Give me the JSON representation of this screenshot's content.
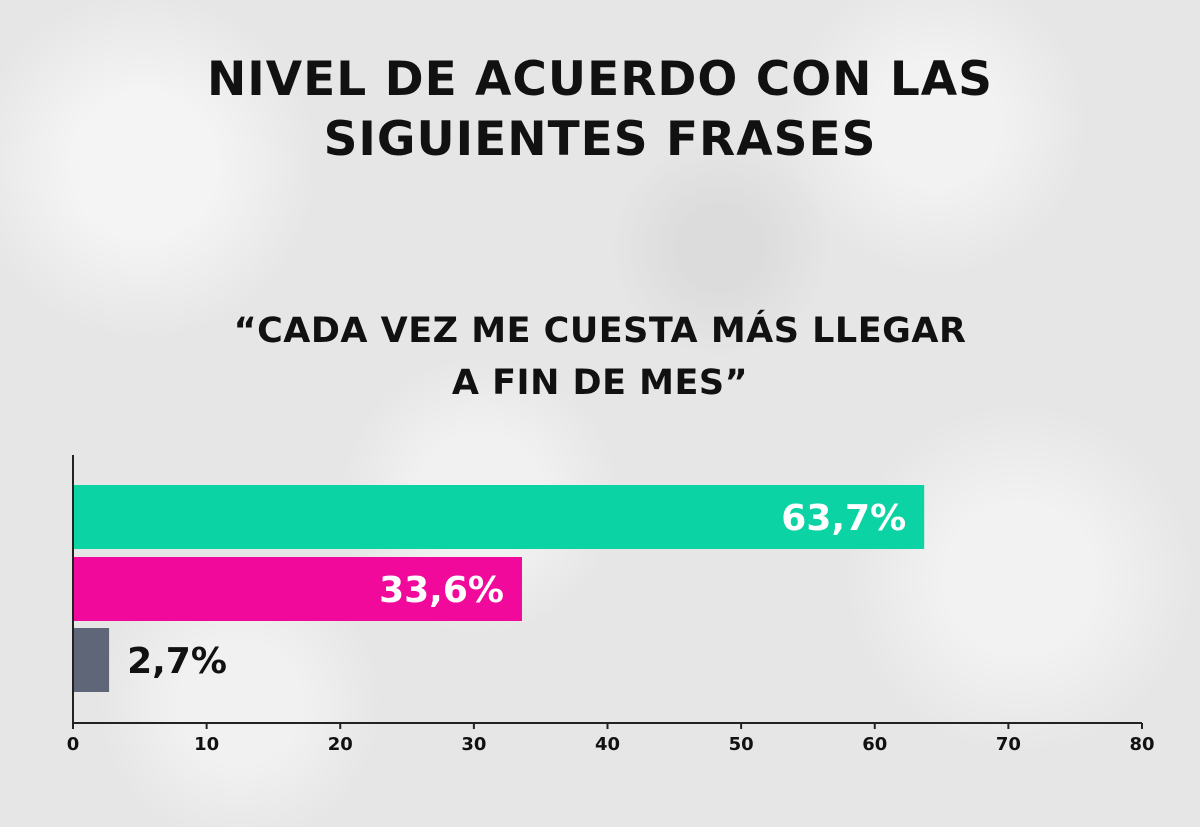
{
  "chart_data": {
    "type": "bar",
    "orientation": "horizontal",
    "title": "NIVEL DE ACUERDO CON LAS\nSIGUIENTES FRASES",
    "subtitle": "“CADA VEZ ME CUESTA MÁS LLEGAR\nA FIN DE MES”",
    "values": [
      63.7,
      33.6,
      2.7
    ],
    "value_labels": [
      "63,7%",
      "33,6%",
      "2,7%"
    ],
    "colors": [
      "#0bd3a4",
      "#f0099a",
      "#5e6678"
    ],
    "label_colors": [
      "#ffffff",
      "#ffffff",
      "#111111"
    ],
    "label_inside": [
      true,
      true,
      false
    ],
    "xlim": [
      0,
      80
    ],
    "xticks": [
      "0",
      "10",
      "20",
      "30",
      "40",
      "50",
      "60",
      "70",
      "80"
    ],
    "grid": false,
    "legend": "none"
  }
}
